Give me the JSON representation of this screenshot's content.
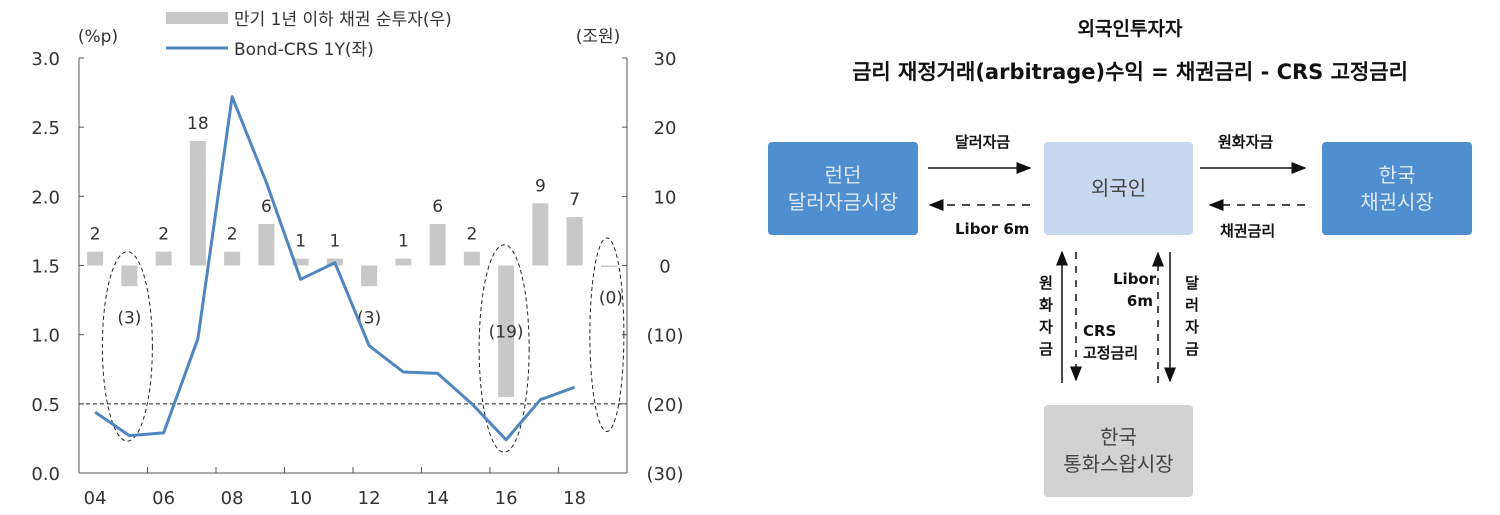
{
  "chart_data": {
    "type": "bar+line",
    "categories": [
      "04",
      "05",
      "06",
      "07",
      "08",
      "09",
      "10",
      "11",
      "12",
      "13",
      "14",
      "15",
      "16",
      "17",
      "18",
      "19"
    ],
    "x_tick_labels": [
      "04",
      "06",
      "08",
      "10",
      "12",
      "14",
      "16",
      "18"
    ],
    "left_axis": {
      "unit": "(%p)",
      "ylim": [
        0,
        3.0
      ],
      "ticks": [
        "0.0",
        "0.5",
        "1.0",
        "1.5",
        "2.0",
        "2.5",
        "3.0"
      ]
    },
    "right_axis": {
      "unit": "(조원)",
      "ylim": [
        -30,
        30
      ],
      "ticks": [
        "(30)",
        "(20)",
        "(10)",
        "0",
        "10",
        "20",
        "30"
      ]
    },
    "series": [
      {
        "name": "만기 1년 이하 채권 순투자(우)",
        "type": "bar",
        "axis": "right",
        "color": "#c8c8c8",
        "values": [
          2,
          -3,
          2,
          18,
          2,
          6,
          1,
          1,
          -3,
          1,
          6,
          2,
          -19,
          9,
          7,
          0
        ],
        "labels": [
          "2",
          "(3)",
          "2",
          "18",
          "2",
          "6",
          "1",
          "1",
          "(3)",
          "1",
          "6",
          "2",
          "(19)",
          "9",
          "7",
          "(0)"
        ]
      },
      {
        "name": "Bond-CRS 1Y(좌)",
        "type": "line",
        "axis": "left",
        "color": "#4f86c0",
        "values": [
          0.44,
          0.27,
          0.29,
          0.97,
          2.72,
          2.1,
          1.4,
          1.52,
          0.92,
          0.73,
          0.72,
          0.5,
          0.24,
          0.53,
          0.62,
          null
        ]
      }
    ],
    "reference_line": {
      "axis": "left",
      "value": 0.5,
      "style": "dashed"
    },
    "highlighted_categories": [
      "05",
      "16",
      "19"
    ],
    "legend": "top-center",
    "grid": false
  },
  "diagram": {
    "title": "외국인투자자",
    "subtitle": "금리 재정거래(arbitrage)수익 = 채권금리 - CRS 고정금리",
    "nodes": {
      "london": [
        "런던",
        "달러자금시장"
      ],
      "foreigner": [
        "외국인"
      ],
      "korea_bond": [
        "한국",
        "채권시장"
      ],
      "korea_swap": [
        "한국",
        "통화스왑시장"
      ]
    },
    "edges": {
      "london_to_foreigner": "달러자금",
      "foreigner_to_london": "Libor 6m",
      "foreigner_to_bond": "원화자금",
      "bond_to_foreigner": "채권금리",
      "swap_krw": "원화자금",
      "swap_libor": [
        "Libor",
        "6m"
      ],
      "swap_crs": [
        "CRS",
        "고정금리"
      ],
      "swap_usd": "달러자금"
    },
    "colors": {
      "market_box": "#4f8fd0",
      "foreigner_box": "#c7d7ef",
      "swap_box": "#d2d2d2"
    }
  }
}
